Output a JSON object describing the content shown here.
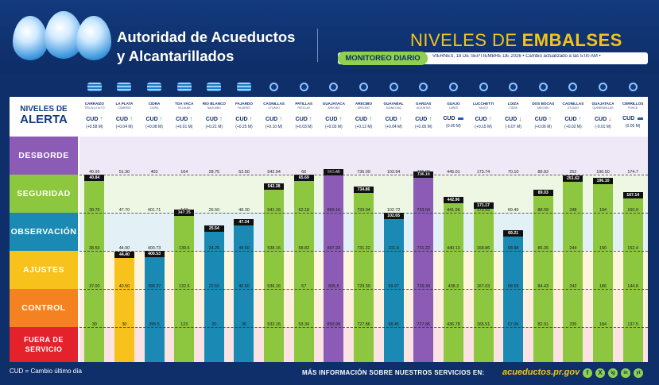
{
  "header": {
    "org_line1": "Autoridad de Acueductos",
    "org_line2": "y Alcantarillados",
    "title_part1": "NIVELES DE",
    "title_part2": "EMBALSES",
    "tag": "MONITOREO DIARIO",
    "date_line": "VIERNES, 18 DE SEPTIEMBRE DE 2026 • Cambio actualizado a las 5:00 AM •"
  },
  "levels_heading": {
    "line1": "NIVELES DE",
    "line2": "ALERTA"
  },
  "levels": [
    {
      "label": "DESBORDE",
      "color": "#8b5bb5"
    },
    {
      "label": "SEGURIDAD",
      "color": "#8dc63f"
    },
    {
      "label": "OBSERVACIÓN",
      "color": "#1a8ab4"
    },
    {
      "label": "AJUSTES",
      "color": "#f6c21b"
    },
    {
      "label": "CONTROL",
      "color": "#f58220"
    },
    {
      "label": "FUERA DE SERVICIO",
      "color": "#e3222b"
    }
  ],
  "cud_label": "CUD",
  "reservoirs": [
    {
      "name": "CARRAIZO",
      "sub": "TRUJILLO ALTO",
      "icon": "wave-icon",
      "dir": "up",
      "change": "(+0.58 M)",
      "level": 40.84,
      "lvl_label": "40.84",
      "status": "SEGURIDAD",
      "thresholds": [
        "40.95",
        "39.70",
        "38.50",
        "37.00",
        "30"
      ]
    },
    {
      "name": "LA PLATA",
      "sub": "COMERIO",
      "icon": "wave-icon",
      "dir": "up",
      "change": "(+0.04 M)",
      "level": 44.4,
      "lvl_label": "44.40",
      "status": "AJUSTES",
      "thresholds": [
        "51.30",
        "47.70",
        "44.90",
        "40.50",
        "30"
      ]
    },
    {
      "name": "CIDRA",
      "sub": "CIDRA",
      "icon": "wave-icon",
      "dir": "up",
      "change": "(+0.08 M)",
      "level": 400.53,
      "lvl_label": "400.53",
      "status": "OBSERVACIÓN",
      "thresholds": [
        "403",
        "401.71",
        "400.73",
        "398.37",
        "395.5"
      ]
    },
    {
      "name": "TOA VACA",
      "sub": "VILLALBA",
      "icon": "wave-icon",
      "dir": "up",
      "change": "(+0.01 M)",
      "level": 147.15,
      "lvl_label": "147.15",
      "status": "SEGURIDAD",
      "thresholds": [
        "164",
        "147",
        "139.6",
        "132.6",
        "123"
      ]
    },
    {
      "name": "RIO BLANCO",
      "sub": "NAGUABO",
      "icon": "wave-icon",
      "dir": "up",
      "change": "(+0.21 M)",
      "level": 25.54,
      "lvl_label": "25.54",
      "status": "OBSERVACIÓN",
      "thresholds": [
        "28.75",
        "26.50",
        "24.25",
        "22.50",
        "20"
      ]
    },
    {
      "name": "FAJARDO",
      "sub": "FAJARDO",
      "icon": "wave-icon",
      "dir": "up",
      "change": "(+0.25 M)",
      "level": 47.34,
      "lvl_label": "47.34",
      "status": "OBSERVACIÓN",
      "thresholds": [
        "52.50",
        "48.30",
        "44.50",
        "40.50",
        "36"
      ]
    },
    {
      "name": "CAONILLAS",
      "sub": "UTUADO",
      "icon": "clock-icon",
      "dir": "up",
      "change": "(+0.10 M)",
      "level": 542.38,
      "lvl_label": "542.38",
      "status": "SEGURIDAD",
      "thresholds": [
        "542.94",
        "541.16",
        "538.16",
        "536.16",
        "532.16"
      ]
    },
    {
      "name": "PATILLAS",
      "sub": "PATILLAS",
      "icon": "clock-icon",
      "dir": "up",
      "change": "(+0.03 M)",
      "level": 65.69,
      "lvl_label": "65.69",
      "status": "SEGURIDAD",
      "thresholds": [
        "66",
        "62.18",
        "58.82",
        "57",
        "53.34"
      ]
    },
    {
      "name": "GUAJATACA",
      "sub": "ARECIBO",
      "icon": "clock-icon",
      "dir": "up",
      "change": "(+0.03 M)",
      "level": 902.45,
      "lvl_label": "902.45",
      "status": "DESBORDE",
      "thresholds": [
        "902.21",
        "899.16",
        "897.33",
        "895.5",
        "893.98"
      ]
    },
    {
      "name": "ARECIBO",
      "sub": "ARECIBO",
      "icon": "clock-icon",
      "dir": "up",
      "change": "(+0.12 M)",
      "level": 734.86,
      "lvl_label": "734.86",
      "status": "SEGURIDAD",
      "thresholds": [
        "736.09",
        "733.04",
        "731.22",
        "729.39",
        "727.86"
      ]
    },
    {
      "name": "GUAYABAL",
      "sub": "JUANA DIAZ",
      "icon": "clock-icon",
      "dir": "up",
      "change": "(+0.04 M)",
      "level": 102.65,
      "lvl_label": "102.65",
      "status": "OBSERVACIÓN",
      "thresholds": [
        "103.94",
        "102.72",
        "101.8",
        "99.97",
        "98.45"
      ]
    },
    {
      "name": "GARZAS",
      "sub": "ADJUNTAS",
      "icon": "clock-icon",
      "dir": "up",
      "change": "(+0.05 M)",
      "level": 736.1,
      "lvl_label": "736.10",
      "status": "DESBORDE",
      "thresholds": [
        "736.09",
        "733.04",
        "731.22",
        "729.39",
        "727.86"
      ]
    },
    {
      "name": "GUAJO",
      "sub": "LARES",
      "icon": "clock-icon",
      "dir": "flat",
      "change": "(0.00 M)",
      "level": 442.96,
      "lvl_label": "442.96",
      "status": "SEGURIDAD",
      "thresholds": [
        "445.01",
        "441.96",
        "440.13",
        "438.3",
        "436.78"
      ]
    },
    {
      "name": "LUCCHETTI",
      "sub": "YAUCO",
      "icon": "clock-icon",
      "dir": "up",
      "change": "(+0.15 M)",
      "level": 171.17,
      "lvl_label": "171.17",
      "status": "SEGURIDAD",
      "thresholds": [
        "173.74",
        "170.55",
        "168.86",
        "167.03",
        "165.51"
      ]
    },
    {
      "name": "LOIZA",
      "sub": "CIDRA",
      "icon": "clock-icon",
      "dir": "down",
      "change": "(-0.07 M)",
      "level": 69.21,
      "lvl_label": "69.21",
      "status": "OBSERVACIÓN",
      "thresholds": [
        "70.10",
        "69.49",
        "68.98",
        "68.58",
        "67.06"
      ]
    },
    {
      "name": "DOS BOCAS",
      "sub": "ARECIBO",
      "icon": "clock-icon",
      "dir": "up",
      "change": "(+0.06 M)",
      "level": 89.03,
      "lvl_label": "89.03",
      "status": "SEGURIDAD",
      "thresholds": [
        "89.92",
        "88.09",
        "86.26",
        "84.43",
        "82.91"
      ]
    },
    {
      "name": "CAONILLAS",
      "sub": "UTUADO",
      "icon": "clock-icon",
      "dir": "up",
      "change": "(+0.02 M)",
      "level": 251.62,
      "lvl_label": "251.62",
      "status": "SEGURIDAD",
      "thresholds": [
        "252",
        "248",
        "244",
        "242",
        "235"
      ]
    },
    {
      "name": "GUAJATACA",
      "sub": "QUEBRADILLAS",
      "icon": "clock-icon",
      "dir": "down",
      "change": "(-0.01 M)",
      "level": 196.1,
      "lvl_label": "196.10",
      "status": "SEGURIDAD",
      "thresholds": [
        "196.50",
        "194",
        "190",
        "186",
        "184"
      ]
    },
    {
      "name": "CERRILLOS",
      "sub": "PONCE",
      "icon": "home-icon",
      "dir": "flat",
      "change": "(0.00 M)",
      "level": 167.14,
      "lvl_label": "167.14",
      "status": "SEGURIDAD",
      "thresholds": [
        "174.7",
        "160.9",
        "152.4",
        "144.8",
        "137.5"
      ]
    }
  ],
  "footer": {
    "legend": "CUD = Cambio último día",
    "info": "MÁS INFORMACIÓN SOBRE NUESTROS SERVICIOS EN:",
    "url": "acueductos.pr.gov",
    "social": [
      "f",
      "X",
      "ig",
      "in",
      "yt"
    ]
  }
}
